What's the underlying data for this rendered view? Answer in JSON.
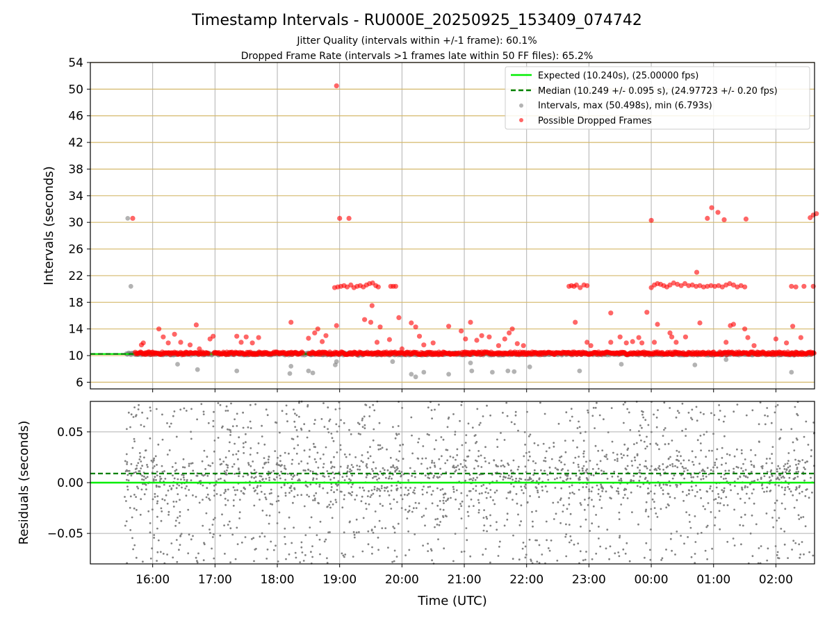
{
  "figure": {
    "title": "Timestamp Intervals - RU000E_20250925_153409_074742",
    "subtitle_1": "Jitter Quality (intervals within +/-1 frame): 60.1%",
    "subtitle_2": "Dropped Frame Rate (intervals >1 frames late within 50 FF files): 65.2%"
  },
  "colors": {
    "expected": "#00ee00",
    "median": "#008000",
    "intervals": "#808080",
    "dropped": "#ff0000",
    "hgrid_top": "#d4b86a",
    "vgrid": "#b0b0b0"
  },
  "chart_data": [
    {
      "type": "scatter",
      "panel": "intervals",
      "ylabel": "Intervals (seconds)",
      "ylim": [
        5,
        54
      ],
      "yticks": [
        6,
        10,
        14,
        18,
        22,
        26,
        30,
        34,
        38,
        42,
        46,
        50,
        54
      ],
      "xlim_hours": [
        15.0,
        26.62
      ],
      "grid": "on",
      "legend_position": "top-right",
      "lines": [
        {
          "name": "Expected (10.240s), (25.00000 fps)",
          "y": 10.24,
          "style": "solid",
          "color": "#00ee00"
        },
        {
          "name": "Median (10.249 +/- 0.095 s), (24.97723 +/- 0.20 fps)",
          "y": 10.249,
          "style": "dashed",
          "color": "#008000"
        }
      ],
      "series": [
        {
          "name": "Intervals, max (50.498s), min (6.793s)",
          "color": "#808080",
          "baseline": {
            "x_start": 15.58,
            "x_end": 26.62,
            "y": 10.24
          },
          "points": [
            {
              "x": 15.6,
              "y": 30.6
            },
            {
              "x": 15.65,
              "y": 20.4
            },
            {
              "x": 16.4,
              "y": 8.7
            },
            {
              "x": 16.72,
              "y": 7.9
            },
            {
              "x": 17.35,
              "y": 7.7
            },
            {
              "x": 18.2,
              "y": 7.3
            },
            {
              "x": 18.22,
              "y": 8.4
            },
            {
              "x": 18.5,
              "y": 7.7
            },
            {
              "x": 18.57,
              "y": 7.4
            },
            {
              "x": 18.93,
              "y": 8.6
            },
            {
              "x": 18.95,
              "y": 9.1
            },
            {
              "x": 19.85,
              "y": 9.1
            },
            {
              "x": 20.15,
              "y": 7.2
            },
            {
              "x": 20.22,
              "y": 6.8
            },
            {
              "x": 20.35,
              "y": 7.5
            },
            {
              "x": 20.75,
              "y": 7.2
            },
            {
              "x": 21.1,
              "y": 8.9
            },
            {
              "x": 21.12,
              "y": 7.7
            },
            {
              "x": 21.45,
              "y": 7.5
            },
            {
              "x": 21.7,
              "y": 7.7
            },
            {
              "x": 21.8,
              "y": 7.6
            },
            {
              "x": 22.05,
              "y": 8.3
            },
            {
              "x": 22.85,
              "y": 7.7
            },
            {
              "x": 23.52,
              "y": 8.7
            },
            {
              "x": 24.7,
              "y": 8.6
            },
            {
              "x": 25.2,
              "y": 9.4
            },
            {
              "x": 25.0,
              "y": 10.2
            },
            {
              "x": 26.25,
              "y": 7.5
            },
            {
              "x": 19.3,
              "y": 10.0
            },
            {
              "x": 23.9,
              "y": 10.1
            }
          ]
        },
        {
          "name": "Possible Dropped Frames",
          "color": "#ff0000",
          "baseline": {
            "x_start": 15.72,
            "x_end": 26.62,
            "y": 10.35
          },
          "points": [
            {
              "x": 15.68,
              "y": 30.6
            },
            {
              "x": 15.82,
              "y": 11.6
            },
            {
              "x": 15.85,
              "y": 11.9
            },
            {
              "x": 16.1,
              "y": 14.0
            },
            {
              "x": 16.17,
              "y": 12.8
            },
            {
              "x": 16.25,
              "y": 11.9
            },
            {
              "x": 16.35,
              "y": 13.2
            },
            {
              "x": 16.45,
              "y": 12.0
            },
            {
              "x": 16.6,
              "y": 11.6
            },
            {
              "x": 16.7,
              "y": 14.6
            },
            {
              "x": 16.75,
              "y": 11.0
            },
            {
              "x": 16.92,
              "y": 12.5
            },
            {
              "x": 16.97,
              "y": 12.9
            },
            {
              "x": 17.35,
              "y": 12.9
            },
            {
              "x": 17.42,
              "y": 12.0
            },
            {
              "x": 17.5,
              "y": 12.8
            },
            {
              "x": 17.6,
              "y": 11.9
            },
            {
              "x": 17.7,
              "y": 12.7
            },
            {
              "x": 18.22,
              "y": 15.0
            },
            {
              "x": 18.5,
              "y": 12.6
            },
            {
              "x": 18.6,
              "y": 13.4
            },
            {
              "x": 18.65,
              "y": 14.0
            },
            {
              "x": 18.72,
              "y": 12.1
            },
            {
              "x": 18.78,
              "y": 13.0
            },
            {
              "x": 18.95,
              "y": 14.5
            },
            {
              "x": 18.95,
              "y": 50.5
            },
            {
              "x": 19.0,
              "y": 30.6
            },
            {
              "x": 19.15,
              "y": 30.6
            },
            {
              "x": 19.4,
              "y": 15.4
            },
            {
              "x": 19.5,
              "y": 15.0
            },
            {
              "x": 19.52,
              "y": 17.5
            },
            {
              "x": 19.6,
              "y": 12.0
            },
            {
              "x": 19.65,
              "y": 14.3
            },
            {
              "x": 19.8,
              "y": 12.4
            },
            {
              "x": 19.95,
              "y": 15.7
            },
            {
              "x": 20.0,
              "y": 11.0
            },
            {
              "x": 20.15,
              "y": 14.9
            },
            {
              "x": 20.22,
              "y": 14.3
            },
            {
              "x": 20.28,
              "y": 12.9
            },
            {
              "x": 20.35,
              "y": 11.6
            },
            {
              "x": 20.5,
              "y": 11.9
            },
            {
              "x": 20.75,
              "y": 14.4
            },
            {
              "x": 20.95,
              "y": 13.7
            },
            {
              "x": 21.02,
              "y": 12.5
            },
            {
              "x": 21.1,
              "y": 15.0
            },
            {
              "x": 21.2,
              "y": 12.3
            },
            {
              "x": 21.28,
              "y": 13.0
            },
            {
              "x": 21.4,
              "y": 12.8
            },
            {
              "x": 21.55,
              "y": 11.5
            },
            {
              "x": 21.65,
              "y": 12.5
            },
            {
              "x": 21.72,
              "y": 13.4
            },
            {
              "x": 21.77,
              "y": 14.0
            },
            {
              "x": 21.85,
              "y": 11.8
            },
            {
              "x": 21.95,
              "y": 11.5
            },
            {
              "x": 22.78,
              "y": 15.0
            },
            {
              "x": 22.97,
              "y": 12.0
            },
            {
              "x": 23.03,
              "y": 11.5
            },
            {
              "x": 23.35,
              "y": 16.4
            },
            {
              "x": 23.35,
              "y": 12.0
            },
            {
              "x": 23.5,
              "y": 12.8
            },
            {
              "x": 23.6,
              "y": 11.9
            },
            {
              "x": 23.7,
              "y": 12.1
            },
            {
              "x": 23.8,
              "y": 12.7
            },
            {
              "x": 23.85,
              "y": 11.9
            },
            {
              "x": 23.93,
              "y": 16.5
            },
            {
              "x": 24.0,
              "y": 30.3
            },
            {
              "x": 24.05,
              "y": 12.0
            },
            {
              "x": 24.1,
              "y": 14.7
            },
            {
              "x": 24.3,
              "y": 13.4
            },
            {
              "x": 24.33,
              "y": 12.8
            },
            {
              "x": 24.4,
              "y": 12.0
            },
            {
              "x": 24.55,
              "y": 12.8
            },
            {
              "x": 24.73,
              "y": 22.5
            },
            {
              "x": 24.78,
              "y": 14.9
            },
            {
              "x": 24.9,
              "y": 30.6
            },
            {
              "x": 24.97,
              "y": 32.2
            },
            {
              "x": 25.07,
              "y": 31.5
            },
            {
              "x": 25.17,
              "y": 30.4
            },
            {
              "x": 25.2,
              "y": 12.0
            },
            {
              "x": 25.27,
              "y": 14.5
            },
            {
              "x": 25.32,
              "y": 14.7
            },
            {
              "x": 25.5,
              "y": 14.0
            },
            {
              "x": 25.52,
              "y": 30.5
            },
            {
              "x": 25.55,
              "y": 12.7
            },
            {
              "x": 25.65,
              "y": 11.5
            },
            {
              "x": 26.0,
              "y": 12.5
            },
            {
              "x": 26.17,
              "y": 11.9
            },
            {
              "x": 26.27,
              "y": 14.4
            },
            {
              "x": 26.4,
              "y": 12.7
            },
            {
              "x": 26.55,
              "y": 30.7
            },
            {
              "x": 26.6,
              "y": 31.1
            },
            {
              "x": 26.65,
              "y": 31.3
            },
            {
              "x": 18.92,
              "y": 20.2
            },
            {
              "x": 18.97,
              "y": 20.3
            },
            {
              "x": 19.02,
              "y": 20.4
            },
            {
              "x": 19.07,
              "y": 20.5
            },
            {
              "x": 19.12,
              "y": 20.3
            },
            {
              "x": 19.18,
              "y": 20.6
            },
            {
              "x": 19.23,
              "y": 20.2
            },
            {
              "x": 19.28,
              "y": 20.4
            },
            {
              "x": 19.33,
              "y": 20.5
            },
            {
              "x": 19.38,
              "y": 20.3
            },
            {
              "x": 19.43,
              "y": 20.6
            },
            {
              "x": 19.48,
              "y": 20.8
            },
            {
              "x": 19.53,
              "y": 20.9
            },
            {
              "x": 19.58,
              "y": 20.5
            },
            {
              "x": 19.62,
              "y": 20.3
            },
            {
              "x": 19.82,
              "y": 20.4
            },
            {
              "x": 19.86,
              "y": 20.4
            },
            {
              "x": 19.9,
              "y": 20.4
            },
            {
              "x": 22.68,
              "y": 20.4
            },
            {
              "x": 22.72,
              "y": 20.5
            },
            {
              "x": 22.76,
              "y": 20.4
            },
            {
              "x": 22.8,
              "y": 20.6
            },
            {
              "x": 22.86,
              "y": 20.2
            },
            {
              "x": 22.92,
              "y": 20.6
            },
            {
              "x": 22.97,
              "y": 20.5
            },
            {
              "x": 24.0,
              "y": 20.2
            },
            {
              "x": 24.05,
              "y": 20.6
            },
            {
              "x": 24.1,
              "y": 20.8
            },
            {
              "x": 24.15,
              "y": 20.7
            },
            {
              "x": 24.2,
              "y": 20.5
            },
            {
              "x": 24.25,
              "y": 20.3
            },
            {
              "x": 24.3,
              "y": 20.6
            },
            {
              "x": 24.36,
              "y": 20.9
            },
            {
              "x": 24.42,
              "y": 20.7
            },
            {
              "x": 24.48,
              "y": 20.5
            },
            {
              "x": 24.54,
              "y": 20.8
            },
            {
              "x": 24.6,
              "y": 20.5
            },
            {
              "x": 24.66,
              "y": 20.6
            },
            {
              "x": 24.72,
              "y": 20.4
            },
            {
              "x": 24.78,
              "y": 20.5
            },
            {
              "x": 24.84,
              "y": 20.3
            },
            {
              "x": 24.9,
              "y": 20.4
            },
            {
              "x": 24.96,
              "y": 20.5
            },
            {
              "x": 25.02,
              "y": 20.4
            },
            {
              "x": 25.08,
              "y": 20.5
            },
            {
              "x": 25.14,
              "y": 20.3
            },
            {
              "x": 25.2,
              "y": 20.6
            },
            {
              "x": 25.26,
              "y": 20.8
            },
            {
              "x": 25.32,
              "y": 20.6
            },
            {
              "x": 25.38,
              "y": 20.3
            },
            {
              "x": 25.44,
              "y": 20.5
            },
            {
              "x": 25.5,
              "y": 20.3
            },
            {
              "x": 26.25,
              "y": 20.4
            },
            {
              "x": 26.32,
              "y": 20.3
            },
            {
              "x": 26.45,
              "y": 20.4
            },
            {
              "x": 26.6,
              "y": 20.4
            }
          ]
        }
      ]
    },
    {
      "type": "scatter",
      "panel": "residuals",
      "ylabel": "Residuals (seconds)",
      "xlabel": "Time (UTC)",
      "ylim": [
        -0.08,
        0.08
      ],
      "yticks": [
        0.05,
        0.0,
        -0.05
      ],
      "ytick_labels": [
        "0.05",
        "0.00",
        "−0.05"
      ],
      "xlim_hours": [
        15.0,
        26.62
      ],
      "xticks": [
        16,
        17,
        18,
        19,
        20,
        21,
        22,
        23,
        24,
        25,
        26
      ],
      "xtick_labels": [
        "16:00",
        "17:00",
        "18:00",
        "19:00",
        "20:00",
        "21:00",
        "22:00",
        "23:00",
        "00:00",
        "01:00",
        "02:00"
      ],
      "grid": "on",
      "lines": [
        {
          "name": "Expected",
          "y": 0.0,
          "style": "solid",
          "color": "#00ee00"
        },
        {
          "name": "Median",
          "y": 0.009,
          "style": "dashed",
          "color": "#008000"
        }
      ],
      "series": [
        {
          "name": "Residuals",
          "color": "#808080",
          "x_range": [
            15.55,
            26.62
          ],
          "y_range": [
            -0.08,
            0.08
          ],
          "count": 2200,
          "concentration_y": 0.005
        }
      ]
    }
  ]
}
